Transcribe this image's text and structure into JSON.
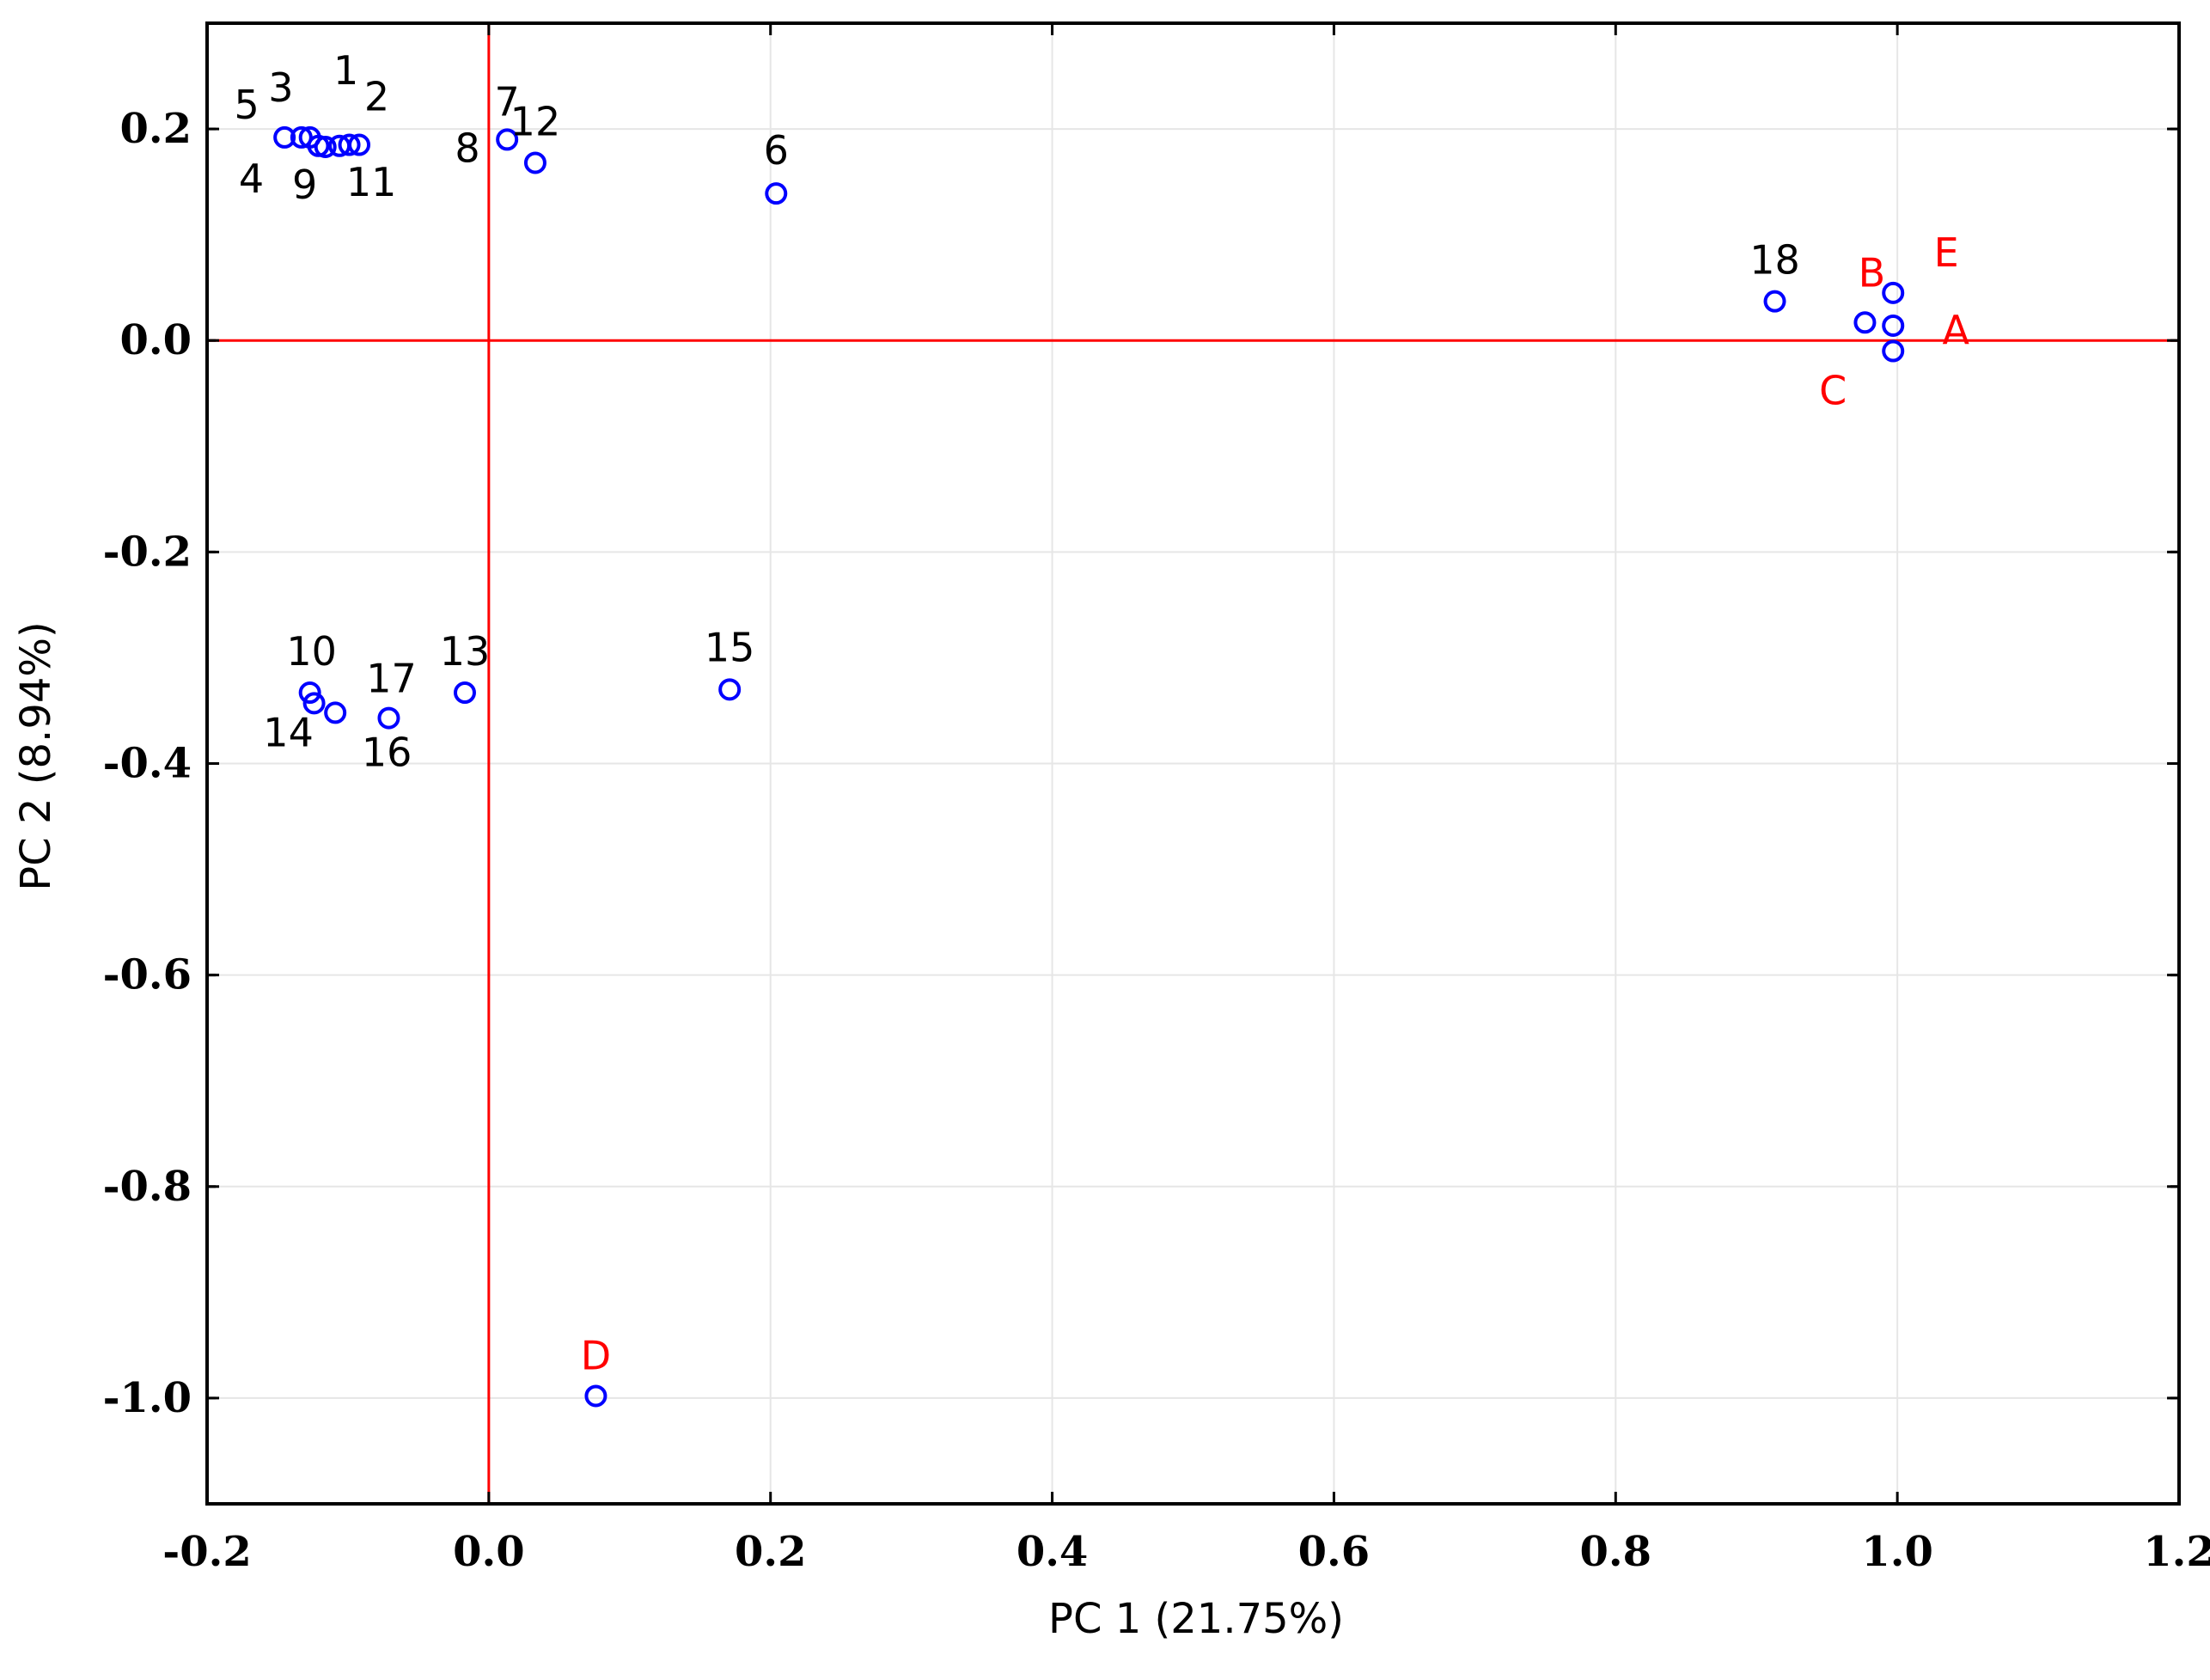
{
  "colors": {
    "point": "#0000ff",
    "reference_line": "#ff0000",
    "variable_label": "#ff0000",
    "sample_label": "#000000",
    "grid": "#e6e6e6",
    "frame": "#000000"
  },
  "chart_data": {
    "type": "scatter",
    "title": "",
    "xlabel": "PC 1 (21.75%)",
    "ylabel": "PC 2 (8.94%)",
    "xlim": [
      -0.2,
      1.2
    ],
    "ylim": [
      -1.1,
      0.3
    ],
    "xticks": [
      -0.2,
      0.0,
      0.2,
      0.4,
      0.6,
      0.8,
      1.0,
      1.2
    ],
    "xtick_labels": [
      "-0.2",
      "0.0",
      "0.2",
      "0.4",
      "0.6",
      "0.8",
      "1.0",
      "1.2"
    ],
    "yticks": [
      0.2,
      0.0,
      -0.2,
      -0.4,
      -0.6,
      -0.8,
      -1.0
    ],
    "ytick_labels": [
      "0.2",
      "0.0",
      "-0.2",
      "-0.4",
      "-0.6",
      "-0.8",
      "-1.0"
    ],
    "grid": true,
    "reference_lines": {
      "x": 0.0,
      "y": 0.0
    },
    "points": [
      {
        "label": "1",
        "x": -0.127,
        "y": 0.192,
        "kind": "sample"
      },
      {
        "label": "2",
        "x": -0.099,
        "y": 0.185,
        "kind": "sample"
      },
      {
        "label": "3",
        "x": -0.133,
        "y": 0.192,
        "kind": "sample"
      },
      {
        "label": "4",
        "x": -0.121,
        "y": 0.184,
        "kind": "sample"
      },
      {
        "label": "5",
        "x": -0.145,
        "y": 0.192,
        "kind": "sample"
      },
      {
        "label": "7",
        "x": 0.013,
        "y": 0.19,
        "kind": "sample"
      },
      {
        "label": "8",
        "x": -0.092,
        "y": 0.185,
        "kind": "sample"
      },
      {
        "label": "9",
        "x": -0.116,
        "y": 0.183,
        "kind": "sample"
      },
      {
        "label": "11",
        "x": -0.106,
        "y": 0.184,
        "kind": "sample"
      },
      {
        "label": "12",
        "x": 0.033,
        "y": 0.168,
        "kind": "sample"
      },
      {
        "label": "6",
        "x": 0.204,
        "y": 0.139,
        "kind": "sample"
      },
      {
        "label": "18",
        "x": 0.913,
        "y": 0.037,
        "kind": "sample"
      },
      {
        "label": "B",
        "x": 0.977,
        "y": 0.017,
        "kind": "variable"
      },
      {
        "label": "E",
        "x": 0.997,
        "y": 0.045,
        "kind": "variable"
      },
      {
        "label": "A",
        "x": 0.997,
        "y": 0.014,
        "kind": "variable"
      },
      {
        "label": "C",
        "x": 0.997,
        "y": -0.01,
        "kind": "variable"
      },
      {
        "label": "10",
        "x": -0.127,
        "y": -0.333,
        "kind": "sample"
      },
      {
        "label": "14",
        "x": -0.124,
        "y": -0.343,
        "kind": "sample"
      },
      {
        "label": "16",
        "x": -0.109,
        "y": -0.352,
        "kind": "sample"
      },
      {
        "label": "17",
        "x": -0.071,
        "y": -0.357,
        "kind": "sample"
      },
      {
        "label": "13",
        "x": -0.017,
        "y": -0.333,
        "kind": "sample"
      },
      {
        "label": "15",
        "x": 0.171,
        "y": -0.33,
        "kind": "sample"
      },
      {
        "label": "D",
        "x": 0.076,
        "y": -0.998,
        "kind": "variable"
      }
    ]
  }
}
